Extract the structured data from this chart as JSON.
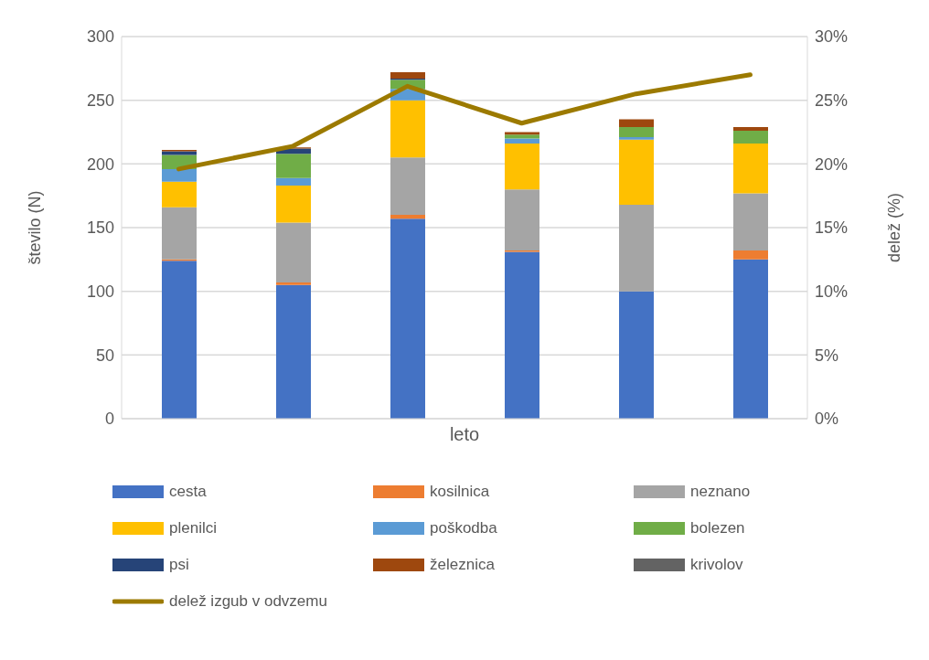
{
  "chart_data": {
    "type": "bar",
    "stacked": true,
    "xlabel": "leto",
    "ylabel": "število (N)",
    "y2label": "delež (%)",
    "categories": [
      null,
      null,
      null,
      null,
      null,
      null
    ],
    "series": [
      {
        "name": "cesta",
        "color": "#4472c4",
        "values": [
          124,
          105,
          157,
          131,
          100,
          125
        ]
      },
      {
        "name": "kosilnica",
        "color": "#ed7d31",
        "values": [
          1,
          2,
          3,
          1,
          0,
          7
        ]
      },
      {
        "name": "neznano",
        "color": "#a5a5a5",
        "values": [
          41,
          47,
          45,
          48,
          68,
          45
        ]
      },
      {
        "name": "plenilci",
        "color": "#ffc000",
        "values": [
          20,
          29,
          45,
          36,
          51,
          39
        ]
      },
      {
        "name": "poškodba",
        "color": "#5b9bd5",
        "values": [
          10,
          6,
          9,
          4,
          2,
          0
        ]
      },
      {
        "name": "bolezen",
        "color": "#70ad47",
        "values": [
          11,
          19,
          7,
          3,
          8,
          10
        ]
      },
      {
        "name": "psi",
        "color": "#264478",
        "values": [
          3,
          4,
          1,
          0,
          0,
          0
        ]
      },
      {
        "name": "železnica",
        "color": "#9e480e",
        "values": [
          1,
          1,
          5,
          2,
          6,
          3
        ]
      },
      {
        "name": "krivolov",
        "color": "#636363",
        "values": [
          0,
          0,
          0,
          0,
          0,
          0
        ]
      },
      {
        "name": "delež izgub v odvzemu",
        "type": "line",
        "axis": "y2",
        "color": "#9c7a00",
        "values": [
          19.6,
          21.4,
          26.1,
          23.2,
          25.5,
          27.0
        ]
      }
    ],
    "ylim": [
      0,
      300
    ],
    "yticks": [
      0,
      50,
      100,
      150,
      200,
      250,
      300
    ],
    "y2lim": [
      0,
      30
    ],
    "y2ticks": [
      {
        "value": 0,
        "label": "0%"
      },
      {
        "value": 5,
        "label": "5%"
      },
      {
        "value": 10,
        "label": "10%"
      },
      {
        "value": 15,
        "label": "15%"
      },
      {
        "value": 20,
        "label": "20%"
      },
      {
        "value": 25,
        "label": "25%"
      },
      {
        "value": 30,
        "label": "30%"
      }
    ],
    "grid": "y",
    "legend": "bottom"
  }
}
